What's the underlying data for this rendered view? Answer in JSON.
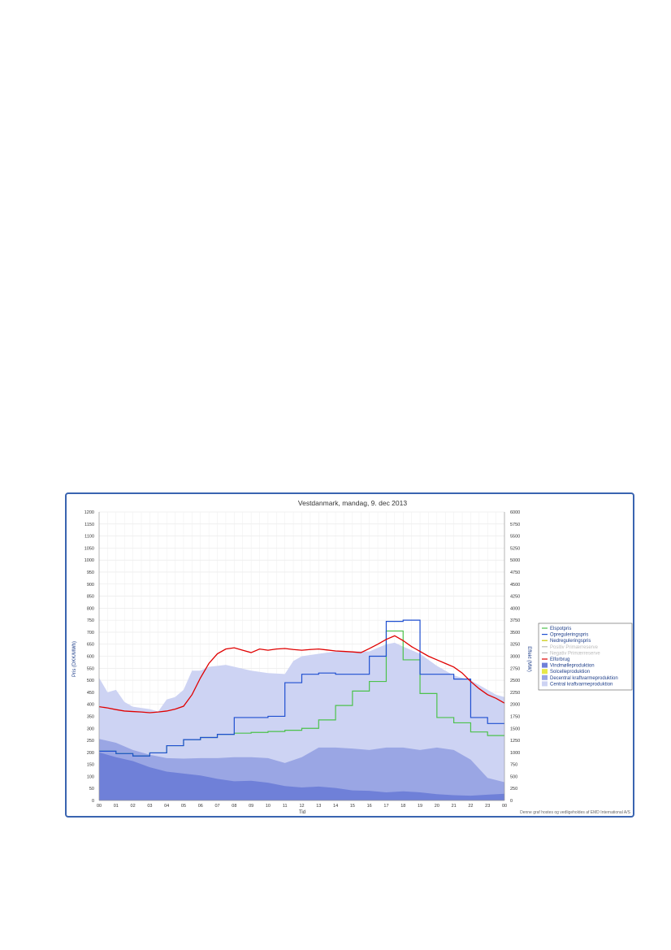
{
  "chart_data": {
    "type": "line",
    "title": "Vestdanmark, mandag, 9. dec 2013",
    "xlabel": "Tid",
    "ylabel_left": "Pris (DKK/MWh)",
    "ylabel_right": "Effekt (MW)",
    "credit": "Denne graf hostes og vedligeholdes af EMD International A/S",
    "x_ticks": [
      "00",
      "01",
      "02",
      "03",
      "04",
      "05",
      "06",
      "07",
      "08",
      "09",
      "10",
      "11",
      "12",
      "13",
      "14",
      "15",
      "16",
      "17",
      "18",
      "19",
      "20",
      "21",
      "22",
      "23",
      "00"
    ],
    "ylim_left": [
      0,
      1200
    ],
    "ylim_right": [
      0,
      6000
    ],
    "y_ticks_left": [
      0,
      50,
      100,
      150,
      200,
      250,
      300,
      350,
      400,
      450,
      500,
      550,
      600,
      650,
      700,
      750,
      800,
      850,
      900,
      950,
      1000,
      1050,
      1100,
      1150,
      1200
    ],
    "y_ticks_right": [
      0,
      250,
      500,
      750,
      1000,
      1250,
      1500,
      1750,
      2000,
      2250,
      2500,
      2750,
      3000,
      3250,
      3500,
      3750,
      4000,
      4250,
      4500,
      4750,
      5000,
      5250,
      5500,
      5750,
      6000
    ],
    "grid": true,
    "legend_position": "right",
    "legend": [
      {
        "name": "Elspotpris",
        "color": "#4cc24c",
        "kind": "line",
        "faded": false
      },
      {
        "name": "Opreguleringspris",
        "color": "#1f4fd0",
        "kind": "line",
        "faded": false
      },
      {
        "name": "Nedreguleringspris",
        "color": "#c8c800",
        "kind": "line",
        "faded": false
      },
      {
        "name": "Positiv Primærreserve",
        "color": "#bbbbbb",
        "kind": "line",
        "faded": true
      },
      {
        "name": "Negativ Primærreserve",
        "color": "#bbbbbb",
        "kind": "line",
        "faded": true
      },
      {
        "name": "Elforbrug",
        "color": "#e00000",
        "kind": "line",
        "faded": false
      },
      {
        "name": "Vindmølleproduktion",
        "color": "#6f80d8",
        "kind": "area",
        "faded": false
      },
      {
        "name": "Solcelleproduktion",
        "color": "#e8e84a",
        "kind": "area",
        "faded": false
      },
      {
        "name": "Decentral kraftvarmeproduktion",
        "color": "#9aa6e4",
        "kind": "area",
        "faded": false
      },
      {
        "name": "Central kraftvarmeproduktion",
        "color": "#cdd3f3",
        "kind": "area",
        "faded": false
      }
    ],
    "series": [
      {
        "name": "Elspotpris",
        "axis": "left",
        "step": true,
        "color": "#4cc24c",
        "values": [
          205,
          195,
          185,
          198,
          228,
          253,
          262,
          275,
          280,
          283,
          287,
          292,
          300,
          335,
          395,
          455,
          495,
          705,
          585,
          445,
          345,
          323,
          285,
          270
        ]
      },
      {
        "name": "Opreguleringspris",
        "axis": "left",
        "step": true,
        "color": "#1f4fd0",
        "values": [
          205,
          195,
          185,
          198,
          228,
          253,
          262,
          275,
          345,
          345,
          350,
          490,
          525,
          530,
          525,
          525,
          600,
          745,
          750,
          525,
          525,
          505,
          345,
          320
        ]
      },
      {
        "name": "Elforbrug",
        "axis": "left",
        "color": "#e00000",
        "x": [
          0,
          0.5,
          1,
          1.5,
          2,
          2.5,
          3,
          3.5,
          4,
          4.5,
          5,
          5.5,
          6,
          6.5,
          7,
          7.5,
          8,
          8.5,
          9,
          9.5,
          10,
          10.5,
          11,
          11.5,
          12,
          12.5,
          13,
          13.5,
          14,
          14.5,
          15,
          15.5,
          16,
          16.5,
          17,
          17.5,
          18,
          18.5,
          19,
          19.5,
          20,
          20.5,
          21,
          21.5,
          22,
          22.5,
          23,
          23.5,
          24
        ],
        "values": [
          390,
          385,
          378,
          372,
          370,
          368,
          365,
          368,
          372,
          380,
          392,
          440,
          510,
          570,
          610,
          630,
          635,
          625,
          615,
          630,
          625,
          630,
          632,
          628,
          625,
          628,
          630,
          626,
          622,
          620,
          618,
          615,
          632,
          650,
          670,
          685,
          665,
          640,
          620,
          600,
          585,
          570,
          555,
          530,
          495,
          465,
          440,
          425,
          405
        ]
      },
      {
        "name": "Vindmølleproduktion",
        "axis": "right",
        "color": "#6f80d8",
        "x": [
          0,
          1,
          2,
          3,
          4,
          5,
          6,
          7,
          8,
          9,
          10,
          11,
          12,
          13,
          14,
          15,
          16,
          17,
          18,
          19,
          20,
          21,
          22,
          23,
          24
        ],
        "values": [
          1000,
          900,
          820,
          690,
          600,
          560,
          520,
          450,
          400,
          410,
          370,
          300,
          270,
          290,
          260,
          210,
          200,
          170,
          190,
          170,
          130,
          110,
          100,
          120,
          140
        ]
      },
      {
        "name": "Decentral kraftvarmeproduktion",
        "axis": "right",
        "color": "#9aa6e4",
        "x": [
          0,
          1,
          2,
          3,
          4,
          5,
          6,
          7,
          8,
          9,
          10,
          11,
          12,
          13,
          14,
          15,
          16,
          17,
          18,
          19,
          20,
          21,
          22,
          23,
          24
        ],
        "values": [
          1280,
          1200,
          1050,
          950,
          880,
          870,
          880,
          880,
          900,
          900,
          880,
          780,
          900,
          1100,
          1100,
          1080,
          1050,
          1100,
          1100,
          1050,
          1100,
          1050,
          850,
          470,
          380
        ]
      },
      {
        "name": "Central kraftvarmeproduktion",
        "axis": "right",
        "color": "#cdd3f3",
        "x": [
          0,
          0.5,
          1,
          1.5,
          2,
          3,
          3.5,
          4,
          4.5,
          5,
          5.5,
          6,
          6.5,
          7,
          7.5,
          8,
          9,
          10,
          11,
          11.5,
          12,
          13,
          14,
          15,
          16,
          17,
          17.5,
          18,
          19,
          20,
          21,
          22,
          23,
          23.5,
          24
        ],
        "values": [
          2550,
          2250,
          2300,
          2050,
          1950,
          1900,
          1850,
          2100,
          2150,
          2300,
          2700,
          2700,
          2780,
          2800,
          2820,
          2780,
          2700,
          2650,
          2630,
          2900,
          3000,
          3050,
          3100,
          3100,
          3100,
          3250,
          3280,
          3200,
          3050,
          2800,
          2600,
          2500,
          2300,
          2200,
          2150
        ]
      }
    ]
  }
}
